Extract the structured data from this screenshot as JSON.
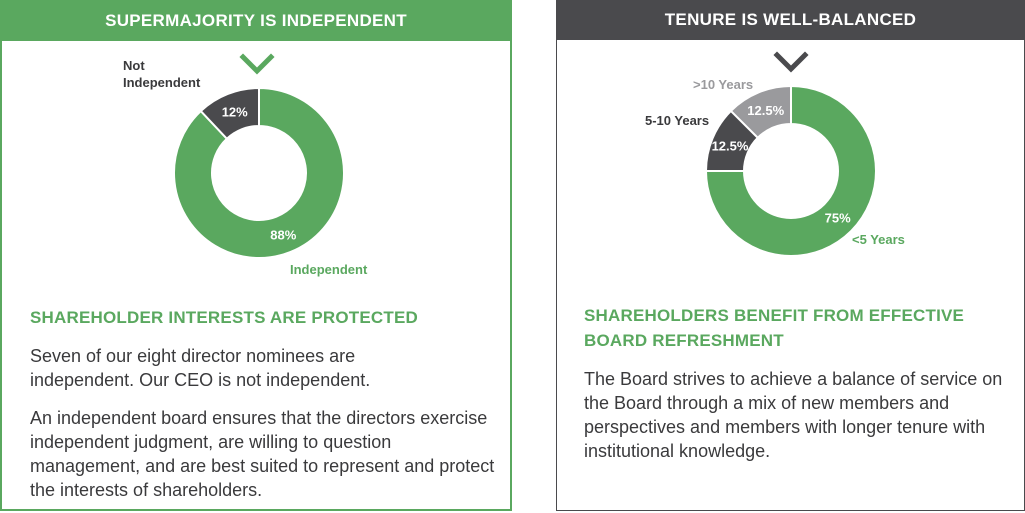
{
  "left_panel": {
    "header": "SUPERMAJORITY IS INDEPENDENT",
    "section_title": "SHAREHOLDER INTERESTS ARE PROTECTED",
    "paragraph_1": "Seven of our eight director nominees are independent. Our CEO is not independent.",
    "paragraph_2": "An independent board ensures that the directors exercise independent judgment, are willing to question management, and are best suited to represent and protect the interests of shareholders.",
    "marker_icon": "chevron-down-icon",
    "header_color": "#5aa85f"
  },
  "right_panel": {
    "header": "TENURE IS WELL-BALANCED",
    "section_title": "SHAREHOLDERS BENEFIT FROM EFFECTIVE BOARD REFRESHMENT",
    "paragraph_1": "The Board strives to achieve a balance of service on the Board through a mix of new members and perspectives and members with longer tenure with institutional knowledge.",
    "marker_icon": "chevron-down-icon",
    "header_color": "#4a4a4d"
  },
  "chart_data": [
    {
      "type": "pie",
      "variant": "donut",
      "slices": [
        {
          "label": "Independent",
          "value": 88,
          "display": "88%",
          "color": "#5aa85f"
        },
        {
          "label": "Not Independent",
          "value": 12,
          "display": "12%",
          "color": "#4a4a4d"
        }
      ]
    },
    {
      "type": "pie",
      "variant": "donut",
      "slices": [
        {
          "label": "<5 Years",
          "value": 75,
          "display": "75%",
          "color": "#5aa85f"
        },
        {
          "label": "5-10 Years",
          "value": 12.5,
          "display": "12.5%",
          "color": "#4a4a4d"
        },
        {
          "label": ">10 Years",
          "value": 12.5,
          "display": "12.5%",
          "color": "#9a9a9d"
        }
      ]
    }
  ]
}
